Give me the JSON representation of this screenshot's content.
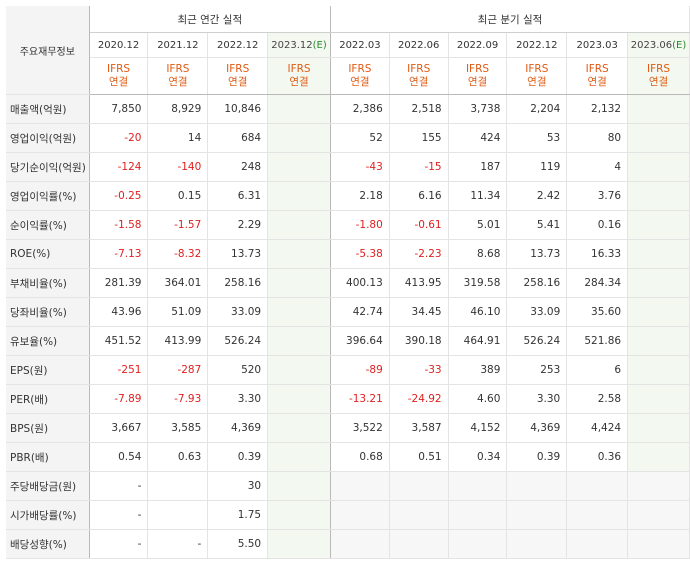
{
  "header": {
    "row_label": "주요재무정보",
    "annual_title": "최근 연간 실적",
    "quarterly_title": "최근 분기 실적",
    "ifrs_line1": "IFRS",
    "ifrs_line2": "연결",
    "annual_periods": [
      "2020.12",
      "2021.12",
      "2022.12",
      "2023.12"
    ],
    "quarterly_periods": [
      "2022.03",
      "2022.06",
      "2022.09",
      "2022.12",
      "2023.03",
      "2023.06"
    ],
    "estimate_mark": "(E)"
  },
  "rows": [
    {
      "label": "매출액(억원)",
      "annual": [
        "7,850",
        "8,929",
        "10,846",
        ""
      ],
      "quarterly": [
        "2,386",
        "2,518",
        "3,738",
        "2,204",
        "2,132",
        ""
      ]
    },
    {
      "label": "영업이익(억원)",
      "annual": [
        "-20",
        "14",
        "684",
        ""
      ],
      "quarterly": [
        "52",
        "155",
        "424",
        "53",
        "80",
        ""
      ]
    },
    {
      "label": "당기순이익(억원)",
      "annual": [
        "-124",
        "-140",
        "248",
        ""
      ],
      "quarterly": [
        "-43",
        "-15",
        "187",
        "119",
        "4",
        ""
      ]
    },
    {
      "label": "영업이익률(%)",
      "annual": [
        "-0.25",
        "0.15",
        "6.31",
        ""
      ],
      "quarterly": [
        "2.18",
        "6.16",
        "11.34",
        "2.42",
        "3.76",
        ""
      ]
    },
    {
      "label": "순이익률(%)",
      "annual": [
        "-1.58",
        "-1.57",
        "2.29",
        ""
      ],
      "quarterly": [
        "-1.80",
        "-0.61",
        "5.01",
        "5.41",
        "0.16",
        ""
      ]
    },
    {
      "label": "ROE(%)",
      "annual": [
        "-7.13",
        "-8.32",
        "13.73",
        ""
      ],
      "quarterly": [
        "-5.38",
        "-2.23",
        "8.68",
        "13.73",
        "16.33",
        ""
      ]
    },
    {
      "label": "부채비율(%)",
      "annual": [
        "281.39",
        "364.01",
        "258.16",
        ""
      ],
      "quarterly": [
        "400.13",
        "413.95",
        "319.58",
        "258.16",
        "284.34",
        ""
      ]
    },
    {
      "label": "당좌비율(%)",
      "annual": [
        "43.96",
        "51.09",
        "33.09",
        ""
      ],
      "quarterly": [
        "42.74",
        "34.45",
        "46.10",
        "33.09",
        "35.60",
        ""
      ]
    },
    {
      "label": "유보율(%)",
      "annual": [
        "451.52",
        "413.99",
        "526.24",
        ""
      ],
      "quarterly": [
        "396.64",
        "390.18",
        "464.91",
        "526.24",
        "521.86",
        ""
      ]
    },
    {
      "label": "EPS(원)",
      "annual": [
        "-251",
        "-287",
        "520",
        ""
      ],
      "quarterly": [
        "-89",
        "-33",
        "389",
        "253",
        "6",
        ""
      ]
    },
    {
      "label": "PER(배)",
      "annual": [
        "-7.89",
        "-7.93",
        "3.30",
        ""
      ],
      "quarterly": [
        "-13.21",
        "-24.92",
        "4.60",
        "3.30",
        "2.58",
        ""
      ]
    },
    {
      "label": "BPS(원)",
      "annual": [
        "3,667",
        "3,585",
        "4,369",
        ""
      ],
      "quarterly": [
        "3,522",
        "3,587",
        "4,152",
        "4,369",
        "4,424",
        ""
      ]
    },
    {
      "label": "PBR(배)",
      "annual": [
        "0.54",
        "0.63",
        "0.39",
        ""
      ],
      "quarterly": [
        "0.68",
        "0.51",
        "0.34",
        "0.39",
        "0.36",
        ""
      ]
    },
    {
      "label": "주당배당금(원)",
      "annual": [
        "-",
        "",
        "30",
        ""
      ],
      "quarterly": [
        "",
        "",
        "",
        "",
        "",
        ""
      ]
    },
    {
      "label": "시가배당률(%)",
      "annual": [
        "-",
        "",
        "1.75",
        ""
      ],
      "quarterly": [
        "",
        "",
        "",
        "",
        "",
        ""
      ]
    },
    {
      "label": "배당성향(%)",
      "annual": [
        "-",
        "-",
        "5.50",
        ""
      ],
      "quarterly": [
        "",
        "",
        "",
        "",
        "",
        ""
      ]
    }
  ]
}
